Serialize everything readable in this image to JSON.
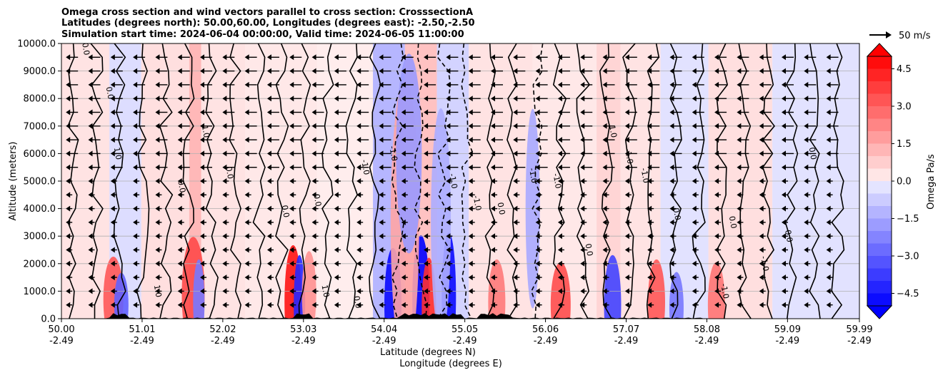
{
  "figure": {
    "title_lines": [
      "Omega cross section and wind vectors parallel to cross section: CrosssectionA",
      "Latitudes (degrees north): 50.00,60.00, Longitudes (degrees east): -2.50,-2.50",
      "Simulation start time: 2024-06-04 00:00:00, Valid time: 2024-06-05 11:00:00"
    ],
    "quiver_key_label": "50 m/s"
  },
  "chart_data": {
    "type": "heatmap",
    "title": "Omega cross section and wind vectors parallel to cross section: CrosssectionA",
    "ylabel": "Altitude (meters)",
    "xlabel_lines": [
      "Latitude (degrees N)",
      "Longitude (degrees E)"
    ],
    "ylim": [
      0,
      10000
    ],
    "yticks": [
      "0.0",
      "1000.0",
      "2000.0",
      "3000.0",
      "4000.0",
      "5000.0",
      "6000.0",
      "7000.0",
      "8000.0",
      "9000.0",
      "10000.0"
    ],
    "xticks": [
      {
        "lat": "50.00",
        "lon": "-2.49"
      },
      {
        "lat": "51.01",
        "lon": "-2.49"
      },
      {
        "lat": "52.02",
        "lon": "-2.49"
      },
      {
        "lat": "53.03",
        "lon": "-2.49"
      },
      {
        "lat": "54.04",
        "lon": "-2.49"
      },
      {
        "lat": "55.05",
        "lon": "-2.49"
      },
      {
        "lat": "56.06",
        "lon": "-2.49"
      },
      {
        "lat": "57.07",
        "lon": "-2.49"
      },
      {
        "lat": "58.08",
        "lon": "-2.49"
      },
      {
        "lat": "59.09",
        "lon": "-2.49"
      },
      {
        "lat": "59.99",
        "lon": "-2.49"
      }
    ],
    "grid": true,
    "colorbar": {
      "label": "Omega Pa/s",
      "ticks": [
        "4.5",
        "3.0",
        "1.5",
        "0.0",
        "−1.5",
        "−3.0",
        "−4.5"
      ],
      "range": [
        -5,
        5
      ],
      "extend": "both"
    },
    "contour_labels": [
      "0.0",
      "1.0",
      "-1.0"
    ],
    "omega_bands": [
      {
        "lat_start": 50.0,
        "lat_end": 50.6,
        "omega": 0.3
      },
      {
        "lat_start": 50.6,
        "lat_end": 51.0,
        "omega": -0.4
      },
      {
        "lat_start": 51.0,
        "lat_end": 51.6,
        "omega": 0.4
      },
      {
        "lat_start": 51.6,
        "lat_end": 51.75,
        "omega": 1.2
      },
      {
        "lat_start": 51.75,
        "lat_end": 52.3,
        "omega": 0.3
      },
      {
        "lat_start": 52.3,
        "lat_end": 53.2,
        "omega": 0.2
      },
      {
        "lat_start": 53.2,
        "lat_end": 53.9,
        "omega": 0.1
      },
      {
        "lat_start": 53.9,
        "lat_end": 54.3,
        "omega": -1.2
      },
      {
        "lat_start": 54.3,
        "lat_end": 54.7,
        "omega": 1.0
      },
      {
        "lat_start": 54.7,
        "lat_end": 55.1,
        "omega": -0.6
      },
      {
        "lat_start": 55.1,
        "lat_end": 55.9,
        "omega": 0.3
      },
      {
        "lat_start": 55.9,
        "lat_end": 56.7,
        "omega": 0.2
      },
      {
        "lat_start": 56.7,
        "lat_end": 57.0,
        "omega": 0.6
      },
      {
        "lat_start": 57.0,
        "lat_end": 57.5,
        "omega": 0.3
      },
      {
        "lat_start": 57.5,
        "lat_end": 58.1,
        "omega": -0.3
      },
      {
        "lat_start": 58.1,
        "lat_end": 58.9,
        "omega": 0.4
      },
      {
        "lat_start": 58.9,
        "lat_end": 59.99,
        "omega": -0.3
      }
    ]
  }
}
